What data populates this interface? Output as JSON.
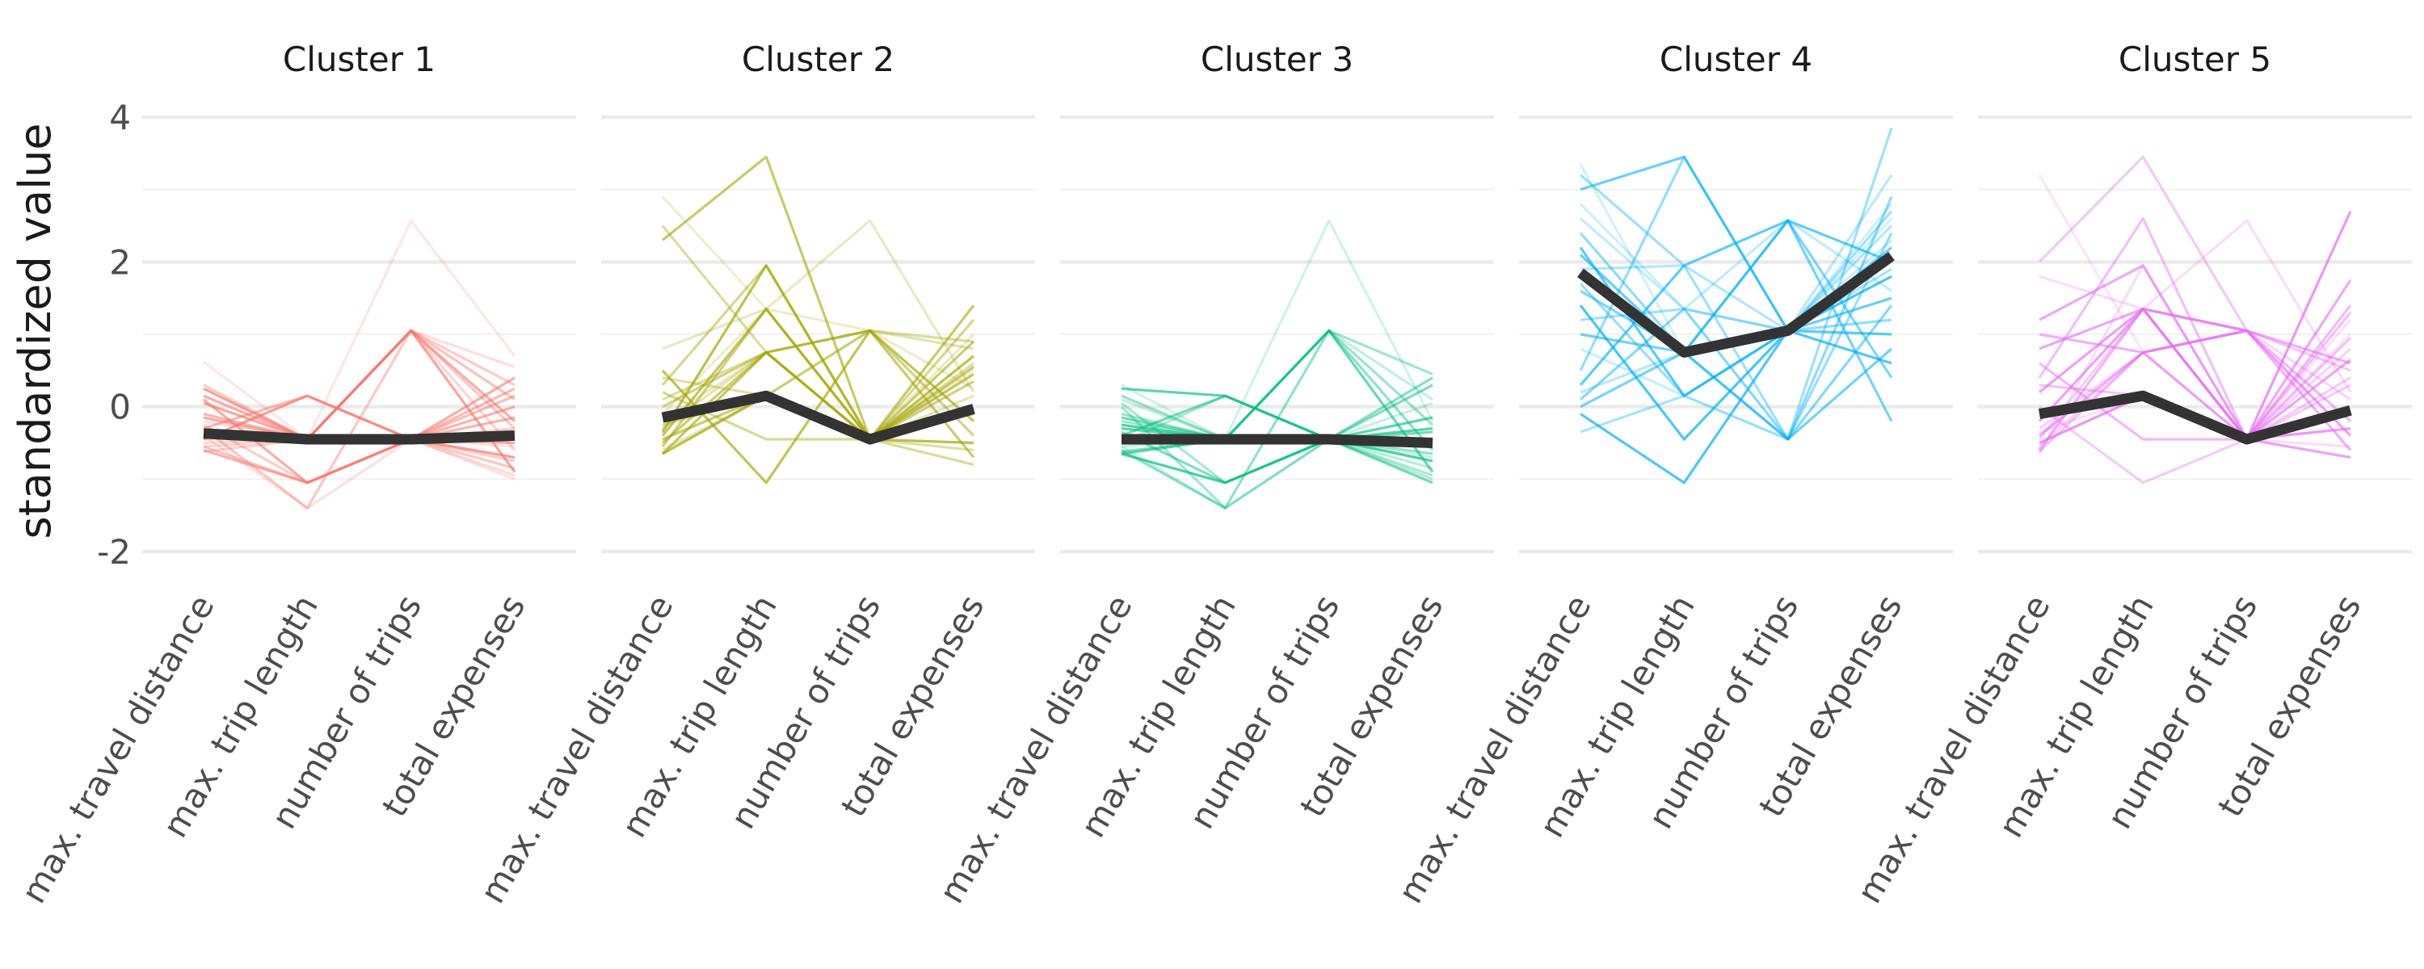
{
  "chart_data": {
    "type": "line",
    "subtype": "parallel-coordinates, faceted by cluster",
    "xlabel": "",
    "ylabel": "standardized value",
    "ylim": [
      -2.4,
      4.3
    ],
    "yticks": [
      -2,
      0,
      2,
      4
    ],
    "ytick_labels": [
      "-2",
      "0",
      "2",
      "4"
    ],
    "grid": true,
    "legend": "none",
    "variables": [
      "max. travel distance",
      "max. trip length",
      "number of trips",
      "total expenses"
    ],
    "facets": [
      {
        "title": "Cluster 1",
        "color": "#F8766D",
        "mean": [
          -0.37,
          -0.45,
          -0.45,
          -0.4
        ],
        "lines": [
          [
            0.62,
            -0.45,
            2.57,
            0.7
          ],
          [
            0.3,
            -0.45,
            1.05,
            0.3
          ],
          [
            0.15,
            -0.45,
            1.05,
            -0.2
          ],
          [
            -0.2,
            -0.45,
            1.05,
            0.55
          ],
          [
            -0.4,
            -0.45,
            1.05,
            0.1
          ],
          [
            0.05,
            -0.45,
            1.05,
            -0.9
          ],
          [
            -0.55,
            -0.45,
            1.05,
            -0.6
          ],
          [
            -0.3,
            0.15,
            -0.45,
            0.25
          ],
          [
            -0.45,
            0.15,
            -0.45,
            -0.7
          ],
          [
            -0.25,
            -1.05,
            -0.45,
            -0.3
          ],
          [
            -0.6,
            -1.05,
            -0.45,
            0.0
          ],
          [
            -0.4,
            -1.4,
            -0.45,
            -1.0
          ],
          [
            -0.55,
            -1.05,
            -0.45,
            -0.85
          ],
          [
            -0.15,
            -0.45,
            -0.45,
            -0.5
          ],
          [
            -0.5,
            -0.45,
            -0.45,
            -0.95
          ],
          [
            -0.35,
            -0.45,
            -0.45,
            0.15
          ],
          [
            0.25,
            -0.45,
            -0.45,
            -0.4
          ],
          [
            -0.62,
            -0.45,
            -0.45,
            -0.75
          ],
          [
            -0.1,
            -0.45,
            -0.45,
            -0.15
          ],
          [
            -0.45,
            -0.45,
            -0.45,
            -0.55
          ],
          [
            -0.3,
            -1.4,
            1.05,
            -0.3
          ],
          [
            0.1,
            -1.05,
            -0.45,
            0.4
          ]
        ]
      },
      {
        "title": "Cluster 2",
        "color": "#A3A500",
        "mean": [
          -0.15,
          0.15,
          -0.45,
          -0.03
        ],
        "lines": [
          [
            2.9,
            1.35,
            -0.45,
            0.5
          ],
          [
            2.5,
            0.75,
            1.05,
            0.9
          ],
          [
            2.3,
            3.45,
            -0.45,
            1.4
          ],
          [
            0.8,
            1.35,
            2.57,
            0.2
          ],
          [
            0.3,
            1.95,
            -0.45,
            1.2
          ],
          [
            0.5,
            -1.05,
            1.05,
            -0.2
          ],
          [
            -0.3,
            0.75,
            1.05,
            0.8
          ],
          [
            -0.55,
            1.35,
            -0.45,
            0.35
          ],
          [
            -0.65,
            0.15,
            -0.45,
            -0.5
          ],
          [
            0.1,
            0.75,
            -0.45,
            0.6
          ],
          [
            -0.45,
            0.15,
            1.05,
            -0.7
          ],
          [
            -0.2,
            0.75,
            -0.45,
            1.0
          ],
          [
            0.2,
            -0.45,
            -0.45,
            -0.1
          ],
          [
            -0.4,
            1.35,
            -0.45,
            0.45
          ],
          [
            -0.6,
            0.15,
            -0.45,
            0.15
          ],
          [
            0.0,
            0.75,
            1.05,
            -0.4
          ],
          [
            -0.35,
            1.95,
            -0.45,
            0.7
          ],
          [
            0.4,
            0.15,
            -0.45,
            -0.6
          ],
          [
            -0.5,
            0.75,
            -0.45,
            0.9
          ],
          [
            -0.1,
            1.35,
            1.05,
            0.25
          ],
          [
            -0.25,
            0.15,
            -0.45,
            -0.8
          ],
          [
            -0.65,
            0.75,
            -0.45,
            0.55
          ]
        ]
      },
      {
        "title": "Cluster 3",
        "color": "#00BF7D",
        "mean": [
          -0.45,
          -0.45,
          -0.45,
          -0.5
        ],
        "lines": [
          [
            0.3,
            -0.45,
            2.57,
            -0.2
          ],
          [
            -0.2,
            -0.45,
            1.05,
            0.45
          ],
          [
            -0.4,
            -0.45,
            1.05,
            -0.9
          ],
          [
            0.1,
            -0.45,
            1.05,
            0.1
          ],
          [
            -0.6,
            -1.4,
            1.05,
            -0.6
          ],
          [
            0.25,
            0.15,
            -0.45,
            -0.3
          ],
          [
            -0.5,
            0.15,
            -0.45,
            -1.0
          ],
          [
            -0.35,
            -1.05,
            -0.45,
            0.3
          ],
          [
            -0.65,
            -1.05,
            -0.45,
            -0.75
          ],
          [
            0.0,
            -1.4,
            -0.45,
            -0.45
          ],
          [
            -0.15,
            -0.45,
            -0.45,
            -1.05
          ],
          [
            -0.55,
            -0.45,
            -0.45,
            0.05
          ],
          [
            0.15,
            -0.45,
            -0.45,
            -0.65
          ],
          [
            -0.3,
            -0.45,
            -0.45,
            -0.15
          ],
          [
            -0.45,
            -0.45,
            -0.45,
            -0.85
          ],
          [
            -0.62,
            -0.45,
            -0.45,
            0.4
          ],
          [
            -0.25,
            -0.45,
            -0.45,
            -0.5
          ],
          [
            0.05,
            -1.05,
            -0.45,
            -0.95
          ],
          [
            -0.4,
            0.15,
            -0.45,
            -0.35
          ],
          [
            -0.55,
            -1.4,
            -0.45,
            -0.7
          ],
          [
            -0.1,
            -0.45,
            1.05,
            -0.25
          ],
          [
            -0.65,
            -0.45,
            -0.45,
            -0.55
          ]
        ]
      },
      {
        "title": "Cluster 4",
        "color": "#00B0F6",
        "mean": [
          1.85,
          0.75,
          1.05,
          2.08
        ],
        "lines": [
          [
            3.35,
            0.75,
            1.05,
            2.6
          ],
          [
            3.2,
            1.95,
            -0.45,
            3.85
          ],
          [
            3.0,
            3.45,
            1.05,
            2.2
          ],
          [
            2.6,
            1.35,
            2.57,
            1.6
          ],
          [
            2.4,
            0.75,
            -0.45,
            2.9
          ],
          [
            2.2,
            0.15,
            1.05,
            1.0
          ],
          [
            1.9,
            1.95,
            1.05,
            2.5
          ],
          [
            1.6,
            0.75,
            2.57,
            0.4
          ],
          [
            1.4,
            -0.45,
            1.05,
            1.8
          ],
          [
            1.2,
            1.35,
            1.05,
            2.7
          ],
          [
            1.0,
            0.75,
            -0.45,
            0.8
          ],
          [
            0.8,
            0.15,
            1.05,
            2.3
          ],
          [
            0.5,
            3.45,
            1.05,
            1.2
          ],
          [
            0.3,
            1.95,
            2.57,
            2.0
          ],
          [
            0.2,
            0.75,
            1.05,
            3.2
          ],
          [
            0.1,
            1.35,
            -0.45,
            1.4
          ],
          [
            -0.1,
            -1.05,
            1.05,
            0.6
          ],
          [
            -0.35,
            0.15,
            1.05,
            1.9
          ],
          [
            0.0,
            0.75,
            2.57,
            -0.2
          ],
          [
            2.8,
            1.35,
            1.05,
            2.8
          ],
          [
            1.7,
            0.15,
            -0.45,
            2.4
          ],
          [
            2.1,
            0.75,
            1.05,
            1.5
          ]
        ]
      },
      {
        "title": "Cluster 5",
        "color": "#E76BF3",
        "mean": [
          -0.1,
          0.15,
          -0.45,
          -0.05
        ],
        "lines": [
          [
            3.2,
            0.75,
            -0.45,
            1.0
          ],
          [
            2.0,
            3.45,
            1.05,
            0.5
          ],
          [
            1.2,
            1.95,
            -0.45,
            1.75
          ],
          [
            1.8,
            1.35,
            2.57,
            0.2
          ],
          [
            0.4,
            2.6,
            -0.45,
            1.3
          ],
          [
            0.2,
            1.35,
            1.05,
            -0.4
          ],
          [
            -0.3,
            0.75,
            -0.45,
            0.8
          ],
          [
            -0.6,
            1.35,
            1.05,
            -0.2
          ],
          [
            -0.5,
            0.15,
            -0.45,
            2.7
          ],
          [
            0.0,
            -1.05,
            -0.45,
            0.3
          ],
          [
            -0.4,
            0.75,
            1.05,
            0.6
          ],
          [
            -0.65,
            1.95,
            -0.45,
            -0.55
          ],
          [
            0.3,
            0.15,
            -0.45,
            0.95
          ],
          [
            -0.2,
            1.35,
            -0.45,
            -0.7
          ],
          [
            -0.55,
            0.75,
            1.05,
            0.1
          ],
          [
            0.6,
            -0.45,
            -0.45,
            1.4
          ],
          [
            -0.1,
            0.15,
            -0.45,
            -0.3
          ],
          [
            -0.45,
            1.35,
            -0.45,
            0.4
          ],
          [
            1.0,
            0.75,
            1.05,
            -0.6
          ],
          [
            -0.35,
            0.15,
            -0.45,
            1.2
          ],
          [
            -0.62,
            0.75,
            -0.45,
            -0.1
          ],
          [
            0.8,
            1.35,
            -0.45,
            0.65
          ]
        ]
      }
    ]
  }
}
